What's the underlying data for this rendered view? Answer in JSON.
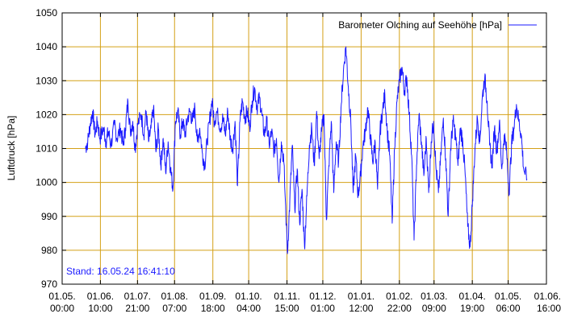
{
  "chart_data": {
    "type": "line",
    "title": "",
    "ylabel": "Luftdruck [hPa]",
    "xlabel": "",
    "ylim": [
      970,
      1050
    ],
    "yticks": [
      970,
      980,
      990,
      1000,
      1010,
      1020,
      1030,
      1040,
      1050
    ],
    "xlim": [
      "2023-05-01 00:00",
      "2024-06-01 16:00"
    ],
    "xticks": [
      {
        "date": "2023-05-01 00:00",
        "label1": "01.05.",
        "label2": "00:00"
      },
      {
        "date": "2023-06-01 10:00",
        "label1": "01.06.",
        "label2": "10:00"
      },
      {
        "date": "2023-07-01 21:00",
        "label1": "01.07.",
        "label2": "21:00"
      },
      {
        "date": "2023-08-01 07:00",
        "label1": "01.08.",
        "label2": "07:00"
      },
      {
        "date": "2023-09-01 18:00",
        "label1": "01.09.",
        "label2": "18:00"
      },
      {
        "date": "2023-10-01 04:00",
        "label1": "01.10.",
        "label2": "04:00"
      },
      {
        "date": "2023-11-01 15:00",
        "label1": "01.11.",
        "label2": "15:00"
      },
      {
        "date": "2023-12-01 01:00",
        "label1": "01.12.",
        "label2": "01:00"
      },
      {
        "date": "2024-01-01 12:00",
        "label1": "01.01.",
        "label2": "12:00"
      },
      {
        "date": "2024-02-01 22:00",
        "label1": "01.02.",
        "label2": "22:00"
      },
      {
        "date": "2024-03-01 09:00",
        "label1": "01.03.",
        "label2": "09:00"
      },
      {
        "date": "2024-04-01 19:00",
        "label1": "01.04.",
        "label2": "19:00"
      },
      {
        "date": "2024-05-01 06:00",
        "label1": "01.05.",
        "label2": "06:00"
      },
      {
        "date": "2024-06-01 16:00",
        "label1": "01.06.",
        "label2": "16:00"
      }
    ],
    "grid": true,
    "legend_position": "top-right",
    "colors": {
      "series": "#1a1aff",
      "grid": "#d4a017",
      "axis": "#000000",
      "annotation": "#1a1aff"
    },
    "annotation": "Stand: 16.05.24 16:41:10",
    "series": [
      {
        "name": "Barometer Olching auf Seehöhe [hPa]",
        "points": [
          [
            "2023-05-20 00:00",
            1010
          ],
          [
            "2023-05-22 00:00",
            1012
          ],
          [
            "2023-05-24 00:00",
            1017
          ],
          [
            "2023-05-26 00:00",
            1021
          ],
          [
            "2023-05-28 00:00",
            1014
          ],
          [
            "2023-05-30 00:00",
            1018
          ],
          [
            "2023-06-01 00:00",
            1013
          ],
          [
            "2023-06-04 00:00",
            1016
          ],
          [
            "2023-06-06 00:00",
            1012
          ],
          [
            "2023-06-08 00:00",
            1015
          ],
          [
            "2023-06-10 00:00",
            1011
          ],
          [
            "2023-06-13 00:00",
            1017
          ],
          [
            "2023-06-15 00:00",
            1013
          ],
          [
            "2023-06-18 00:00",
            1016
          ],
          [
            "2023-06-20 00:00",
            1011
          ],
          [
            "2023-06-22 00:00",
            1016
          ],
          [
            "2023-06-24 00:00",
            1024
          ],
          [
            "2023-06-26 00:00",
            1015
          ],
          [
            "2023-06-28 00:00",
            1018
          ],
          [
            "2023-06-30 00:00",
            1010
          ],
          [
            "2023-07-02 00:00",
            1017
          ],
          [
            "2023-07-05 00:00",
            1020
          ],
          [
            "2023-07-07 00:00",
            1014
          ],
          [
            "2023-07-09 00:00",
            1021
          ],
          [
            "2023-07-11 00:00",
            1012
          ],
          [
            "2023-07-13 00:00",
            1016
          ],
          [
            "2023-07-15 00:00",
            1022
          ],
          [
            "2023-07-17 00:00",
            1009
          ],
          [
            "2023-07-19 00:00",
            1016
          ],
          [
            "2023-07-21 00:00",
            1005
          ],
          [
            "2023-07-23 00:00",
            1013
          ],
          [
            "2023-07-25 00:00",
            1003
          ],
          [
            "2023-07-27 00:00",
            1012
          ],
          [
            "2023-07-29 00:00",
            1004
          ],
          [
            "2023-07-31 00:00",
            998
          ],
          [
            "2023-08-02 00:00",
            1018
          ],
          [
            "2023-08-04 00:00",
            1021
          ],
          [
            "2023-08-06 00:00",
            1014
          ],
          [
            "2023-08-08 00:00",
            1018
          ],
          [
            "2023-08-10 00:00",
            1014
          ],
          [
            "2023-08-12 00:00",
            1019
          ],
          [
            "2023-08-14 00:00",
            1021
          ],
          [
            "2023-08-16 00:00",
            1018
          ],
          [
            "2023-08-18 00:00",
            1022
          ],
          [
            "2023-08-20 00:00",
            1012
          ],
          [
            "2023-08-22 00:00",
            1016
          ],
          [
            "2023-08-24 00:00",
            1009
          ],
          [
            "2023-08-26 00:00",
            1005
          ],
          [
            "2023-08-28 00:00",
            1012
          ],
          [
            "2023-08-30 00:00",
            1018
          ],
          [
            "2023-09-01 00:00",
            1024
          ],
          [
            "2023-09-03 00:00",
            1018
          ],
          [
            "2023-09-05 00:00",
            1021
          ],
          [
            "2023-09-08 00:00",
            1016
          ],
          [
            "2023-09-10 00:00",
            1019
          ],
          [
            "2023-09-12 00:00",
            1014
          ],
          [
            "2023-09-14 00:00",
            1021
          ],
          [
            "2023-09-16 00:00",
            1013
          ],
          [
            "2023-09-18 00:00",
            1010
          ],
          [
            "2023-09-20 00:00",
            1018
          ],
          [
            "2023-09-22 00:00",
            999
          ],
          [
            "2023-09-24 00:00",
            1018
          ],
          [
            "2023-09-26 00:00",
            1024
          ],
          [
            "2023-09-28 00:00",
            1019
          ],
          [
            "2023-09-30 00:00",
            1021
          ],
          [
            "2023-10-02 00:00",
            1016
          ],
          [
            "2023-10-04 00:00",
            1024
          ],
          [
            "2023-10-06 00:00",
            1028
          ],
          [
            "2023-10-08 00:00",
            1022
          ],
          [
            "2023-10-10 00:00",
            1025
          ],
          [
            "2023-10-12 00:00",
            1020
          ],
          [
            "2023-10-14 00:00",
            1014
          ],
          [
            "2023-10-16 00:00",
            1018
          ],
          [
            "2023-10-18 00:00",
            1011
          ],
          [
            "2023-10-20 00:00",
            1015
          ],
          [
            "2023-10-22 00:00",
            1009
          ],
          [
            "2023-10-24 00:00",
            1013
          ],
          [
            "2023-10-26 00:00",
            1000
          ],
          [
            "2023-10-28 00:00",
            1012
          ],
          [
            "2023-10-30 00:00",
            1006
          ],
          [
            "2023-11-02 00:00",
            979
          ],
          [
            "2023-11-04 00:00",
            995
          ],
          [
            "2023-11-06 00:00",
            1011
          ],
          [
            "2023-11-08 00:00",
            992
          ],
          [
            "2023-11-10 00:00",
            1004
          ],
          [
            "2023-11-12 00:00",
            988
          ],
          [
            "2023-11-14 00:00",
            998
          ],
          [
            "2023-11-16 00:00",
            981
          ],
          [
            "2023-11-18 00:00",
            996
          ],
          [
            "2023-11-20 00:00",
            1011
          ],
          [
            "2023-11-22 00:00",
            1016
          ],
          [
            "2023-11-24 00:00",
            1005
          ],
          [
            "2023-11-26 00:00",
            1021
          ],
          [
            "2023-11-28 00:00",
            1007
          ],
          [
            "2023-11-30 00:00",
            1015
          ],
          [
            "2023-12-02 00:00",
            1020
          ],
          [
            "2023-12-04 00:00",
            989
          ],
          [
            "2023-12-06 00:00",
            1005
          ],
          [
            "2023-12-08 00:00",
            1018
          ],
          [
            "2023-12-10 00:00",
            997
          ],
          [
            "2023-12-12 00:00",
            1012
          ],
          [
            "2023-12-14 00:00",
            1006
          ],
          [
            "2023-12-16 00:00",
            1022
          ],
          [
            "2023-12-18 00:00",
            1033
          ],
          [
            "2023-12-20 00:00",
            1040
          ],
          [
            "2023-12-22 00:00",
            1028
          ],
          [
            "2023-12-24 00:00",
            1018
          ],
          [
            "2023-12-26 00:00",
            997
          ],
          [
            "2023-12-28 00:00",
            1008
          ],
          [
            "2023-12-30 00:00",
            996
          ],
          [
            "2024-01-01 00:00",
            1002
          ],
          [
            "2024-01-03 00:00",
            1011
          ],
          [
            "2024-01-05 00:00",
            1015
          ],
          [
            "2024-01-07 00:00",
            1022
          ],
          [
            "2024-01-09 00:00",
            1014
          ],
          [
            "2024-01-11 00:00",
            1006
          ],
          [
            "2024-01-13 00:00",
            1012
          ],
          [
            "2024-01-15 00:00",
            998
          ],
          [
            "2024-01-17 00:00",
            1015
          ],
          [
            "2024-01-19 00:00",
            1021
          ],
          [
            "2024-01-21 00:00",
            1026
          ],
          [
            "2024-01-23 00:00",
            1015
          ],
          [
            "2024-01-25 00:00",
            1008
          ],
          [
            "2024-01-27 00:00",
            988
          ],
          [
            "2024-01-29 00:00",
            1010
          ],
          [
            "2024-01-31 00:00",
            1024
          ],
          [
            "2024-02-02 00:00",
            1030
          ],
          [
            "2024-02-04 00:00",
            1034
          ],
          [
            "2024-02-06 00:00",
            1027
          ],
          [
            "2024-02-08 00:00",
            1031
          ],
          [
            "2024-02-10 00:00",
            1020
          ],
          [
            "2024-02-12 00:00",
            1008
          ],
          [
            "2024-02-14 00:00",
            983
          ],
          [
            "2024-02-16 00:00",
            1005
          ],
          [
            "2024-02-18 00:00",
            1020
          ],
          [
            "2024-02-20 00:00",
            1012
          ],
          [
            "2024-02-22 00:00",
            1002
          ],
          [
            "2024-02-24 00:00",
            1013
          ],
          [
            "2024-02-26 00:00",
            997
          ],
          [
            "2024-02-28 00:00",
            1012
          ],
          [
            "2024-03-01 00:00",
            1018
          ],
          [
            "2024-03-03 00:00",
            1004
          ],
          [
            "2024-03-05 00:00",
            997
          ],
          [
            "2024-03-07 00:00",
            1008
          ],
          [
            "2024-03-09 00:00",
            1019
          ],
          [
            "2024-03-11 00:00",
            1007
          ],
          [
            "2024-03-13 00:00",
            990
          ],
          [
            "2024-03-15 00:00",
            1010
          ],
          [
            "2024-03-17 00:00",
            1018
          ],
          [
            "2024-03-19 00:00",
            1014
          ],
          [
            "2024-03-21 00:00",
            1005
          ],
          [
            "2024-03-23 00:00",
            1016
          ],
          [
            "2024-03-25 00:00",
            1012
          ],
          [
            "2024-03-27 00:00",
            1002
          ],
          [
            "2024-03-29 00:00",
            987
          ],
          [
            "2024-03-31 00:00",
            981
          ],
          [
            "2024-04-02 00:00",
            995
          ],
          [
            "2024-04-04 00:00",
            1010
          ],
          [
            "2024-04-06 00:00",
            1019
          ],
          [
            "2024-04-08 00:00",
            1012
          ],
          [
            "2024-04-10 00:00",
            1025
          ],
          [
            "2024-04-12 00:00",
            1031
          ],
          [
            "2024-04-14 00:00",
            1024
          ],
          [
            "2024-04-16 00:00",
            1011
          ],
          [
            "2024-04-18 00:00",
            1005
          ],
          [
            "2024-04-20 00:00",
            1016
          ],
          [
            "2024-04-22 00:00",
            1009
          ],
          [
            "2024-04-24 00:00",
            1018
          ],
          [
            "2024-04-26 00:00",
            1004
          ],
          [
            "2024-04-28 00:00",
            1014
          ],
          [
            "2024-04-30 00:00",
            1009
          ],
          [
            "2024-05-02 00:00",
            997
          ],
          [
            "2024-05-04 00:00",
            1011
          ],
          [
            "2024-05-06 00:00",
            1016
          ],
          [
            "2024-05-08 00:00",
            1023
          ],
          [
            "2024-05-10 00:00",
            1018
          ],
          [
            "2024-05-12 00:00",
            1014
          ],
          [
            "2024-05-14 00:00",
            1004
          ],
          [
            "2024-05-16 16:41",
            1001
          ]
        ]
      }
    ]
  }
}
